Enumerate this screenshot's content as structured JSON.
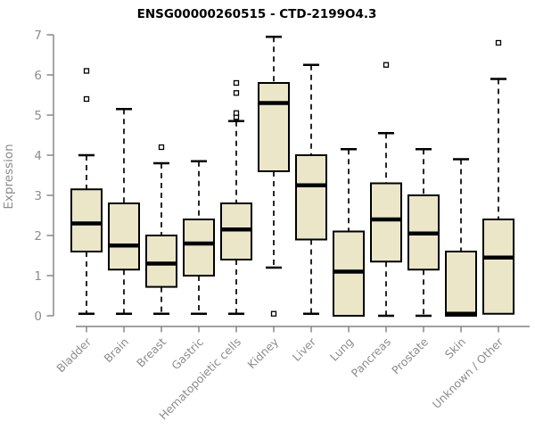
{
  "chart_data": {
    "type": "boxplot",
    "title": "ENSG00000260515 - CTD-2199O4.3",
    "ylabel": "Expression",
    "xlabel": "",
    "ylim": [
      0,
      7
    ],
    "yticks": [
      0,
      1,
      2,
      3,
      4,
      5,
      6,
      7
    ],
    "grid": false,
    "legend": false,
    "categories": [
      "Bladder",
      "Brain",
      "Breast",
      "Gastric",
      "Hematopoietic cells",
      "Kidney",
      "Liver",
      "Lung",
      "Pancreas",
      "Prostate",
      "Skin",
      "Unknown / Other"
    ],
    "series": [
      {
        "category": "Bladder",
        "whisker_low": 0.05,
        "q1": 1.6,
        "median": 2.3,
        "q3": 3.15,
        "whisker_high": 4.0,
        "outliers": [
          5.4,
          6.1
        ]
      },
      {
        "category": "Brain",
        "whisker_low": 0.05,
        "q1": 1.15,
        "median": 1.75,
        "q3": 2.8,
        "whisker_high": 5.15,
        "outliers": []
      },
      {
        "category": "Breast",
        "whisker_low": 0.05,
        "q1": 0.72,
        "median": 1.3,
        "q3": 2.0,
        "whisker_high": 3.8,
        "outliers": [
          4.2
        ]
      },
      {
        "category": "Gastric",
        "whisker_low": 0.05,
        "q1": 1.0,
        "median": 1.8,
        "q3": 2.4,
        "whisker_high": 3.85,
        "outliers": []
      },
      {
        "category": "Hematopoietic cells",
        "whisker_low": 0.05,
        "q1": 1.4,
        "median": 2.15,
        "q3": 2.8,
        "whisker_high": 4.85,
        "outliers": [
          4.95,
          5.05,
          5.55,
          5.8
        ]
      },
      {
        "category": "Kidney",
        "whisker_low": 1.2,
        "q1": 3.6,
        "median": 5.3,
        "q3": 5.8,
        "whisker_high": 6.95,
        "outliers": [
          0.05
        ]
      },
      {
        "category": "Liver",
        "whisker_low": 0.05,
        "q1": 1.9,
        "median": 3.25,
        "q3": 4.0,
        "whisker_high": 6.25,
        "outliers": []
      },
      {
        "category": "Lung",
        "whisker_low": 0.0,
        "q1": 0.0,
        "median": 1.1,
        "q3": 2.1,
        "whisker_high": 4.15,
        "outliers": []
      },
      {
        "category": "Pancreas",
        "whisker_low": 0.0,
        "q1": 1.35,
        "median": 2.4,
        "q3": 3.3,
        "whisker_high": 4.55,
        "outliers": [
          6.25
        ]
      },
      {
        "category": "Prostate",
        "whisker_low": 0.0,
        "q1": 1.15,
        "median": 2.05,
        "q3": 3.0,
        "whisker_high": 4.15,
        "outliers": []
      },
      {
        "category": "Skin",
        "whisker_low": 0.0,
        "q1": 0.0,
        "median": 0.05,
        "q3": 1.6,
        "whisker_high": 3.9,
        "outliers": []
      },
      {
        "category": "Unknown / Other",
        "whisker_low": 0.05,
        "q1": 0.05,
        "median": 1.45,
        "q3": 2.4,
        "whisker_high": 5.9,
        "outliers": [
          6.8
        ]
      }
    ],
    "colors": {
      "box_fill": "#EBE6C8",
      "box_stroke": "#000000",
      "median": "#000000",
      "whisker": "#000000",
      "outlier_stroke": "#000000",
      "outlier_fill": "#ffffff",
      "axis": "#808080",
      "tick_label": "#8C8C8C",
      "title": "#000000",
      "background": "#ffffff"
    }
  }
}
